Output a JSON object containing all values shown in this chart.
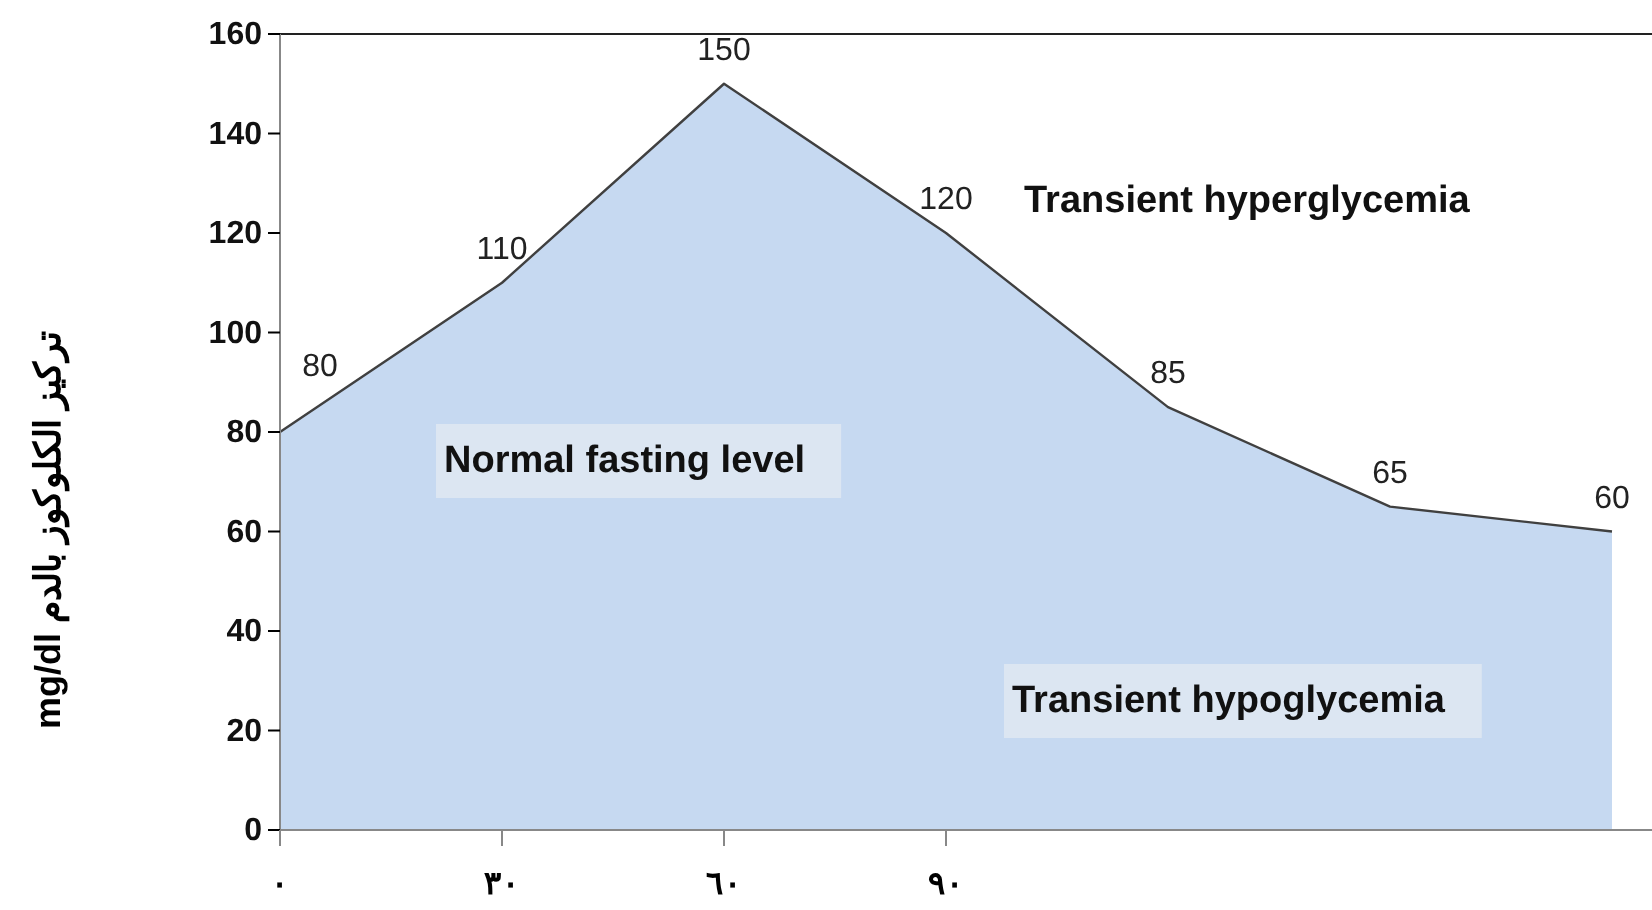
{
  "chart_data": {
    "type": "area",
    "ylabel": "تركيز الكلوكوز بالدم mg/dl",
    "categories": [
      "٠",
      "٣٠",
      "٦٠",
      "٩٠",
      null,
      null,
      null
    ],
    "values": [
      80,
      110,
      150,
      120,
      85,
      65,
      60
    ],
    "color": "#c6d9f1",
    "ylim": [
      0,
      160
    ],
    "yticks": [
      0,
      20,
      40,
      60,
      80,
      100,
      120,
      140,
      160
    ],
    "data_labels": true,
    "grid": false,
    "marker": "none",
    "annotations": [
      "Normal fasting level",
      "Transient hyperglycemia",
      "Transient hypoglycemia"
    ]
  }
}
